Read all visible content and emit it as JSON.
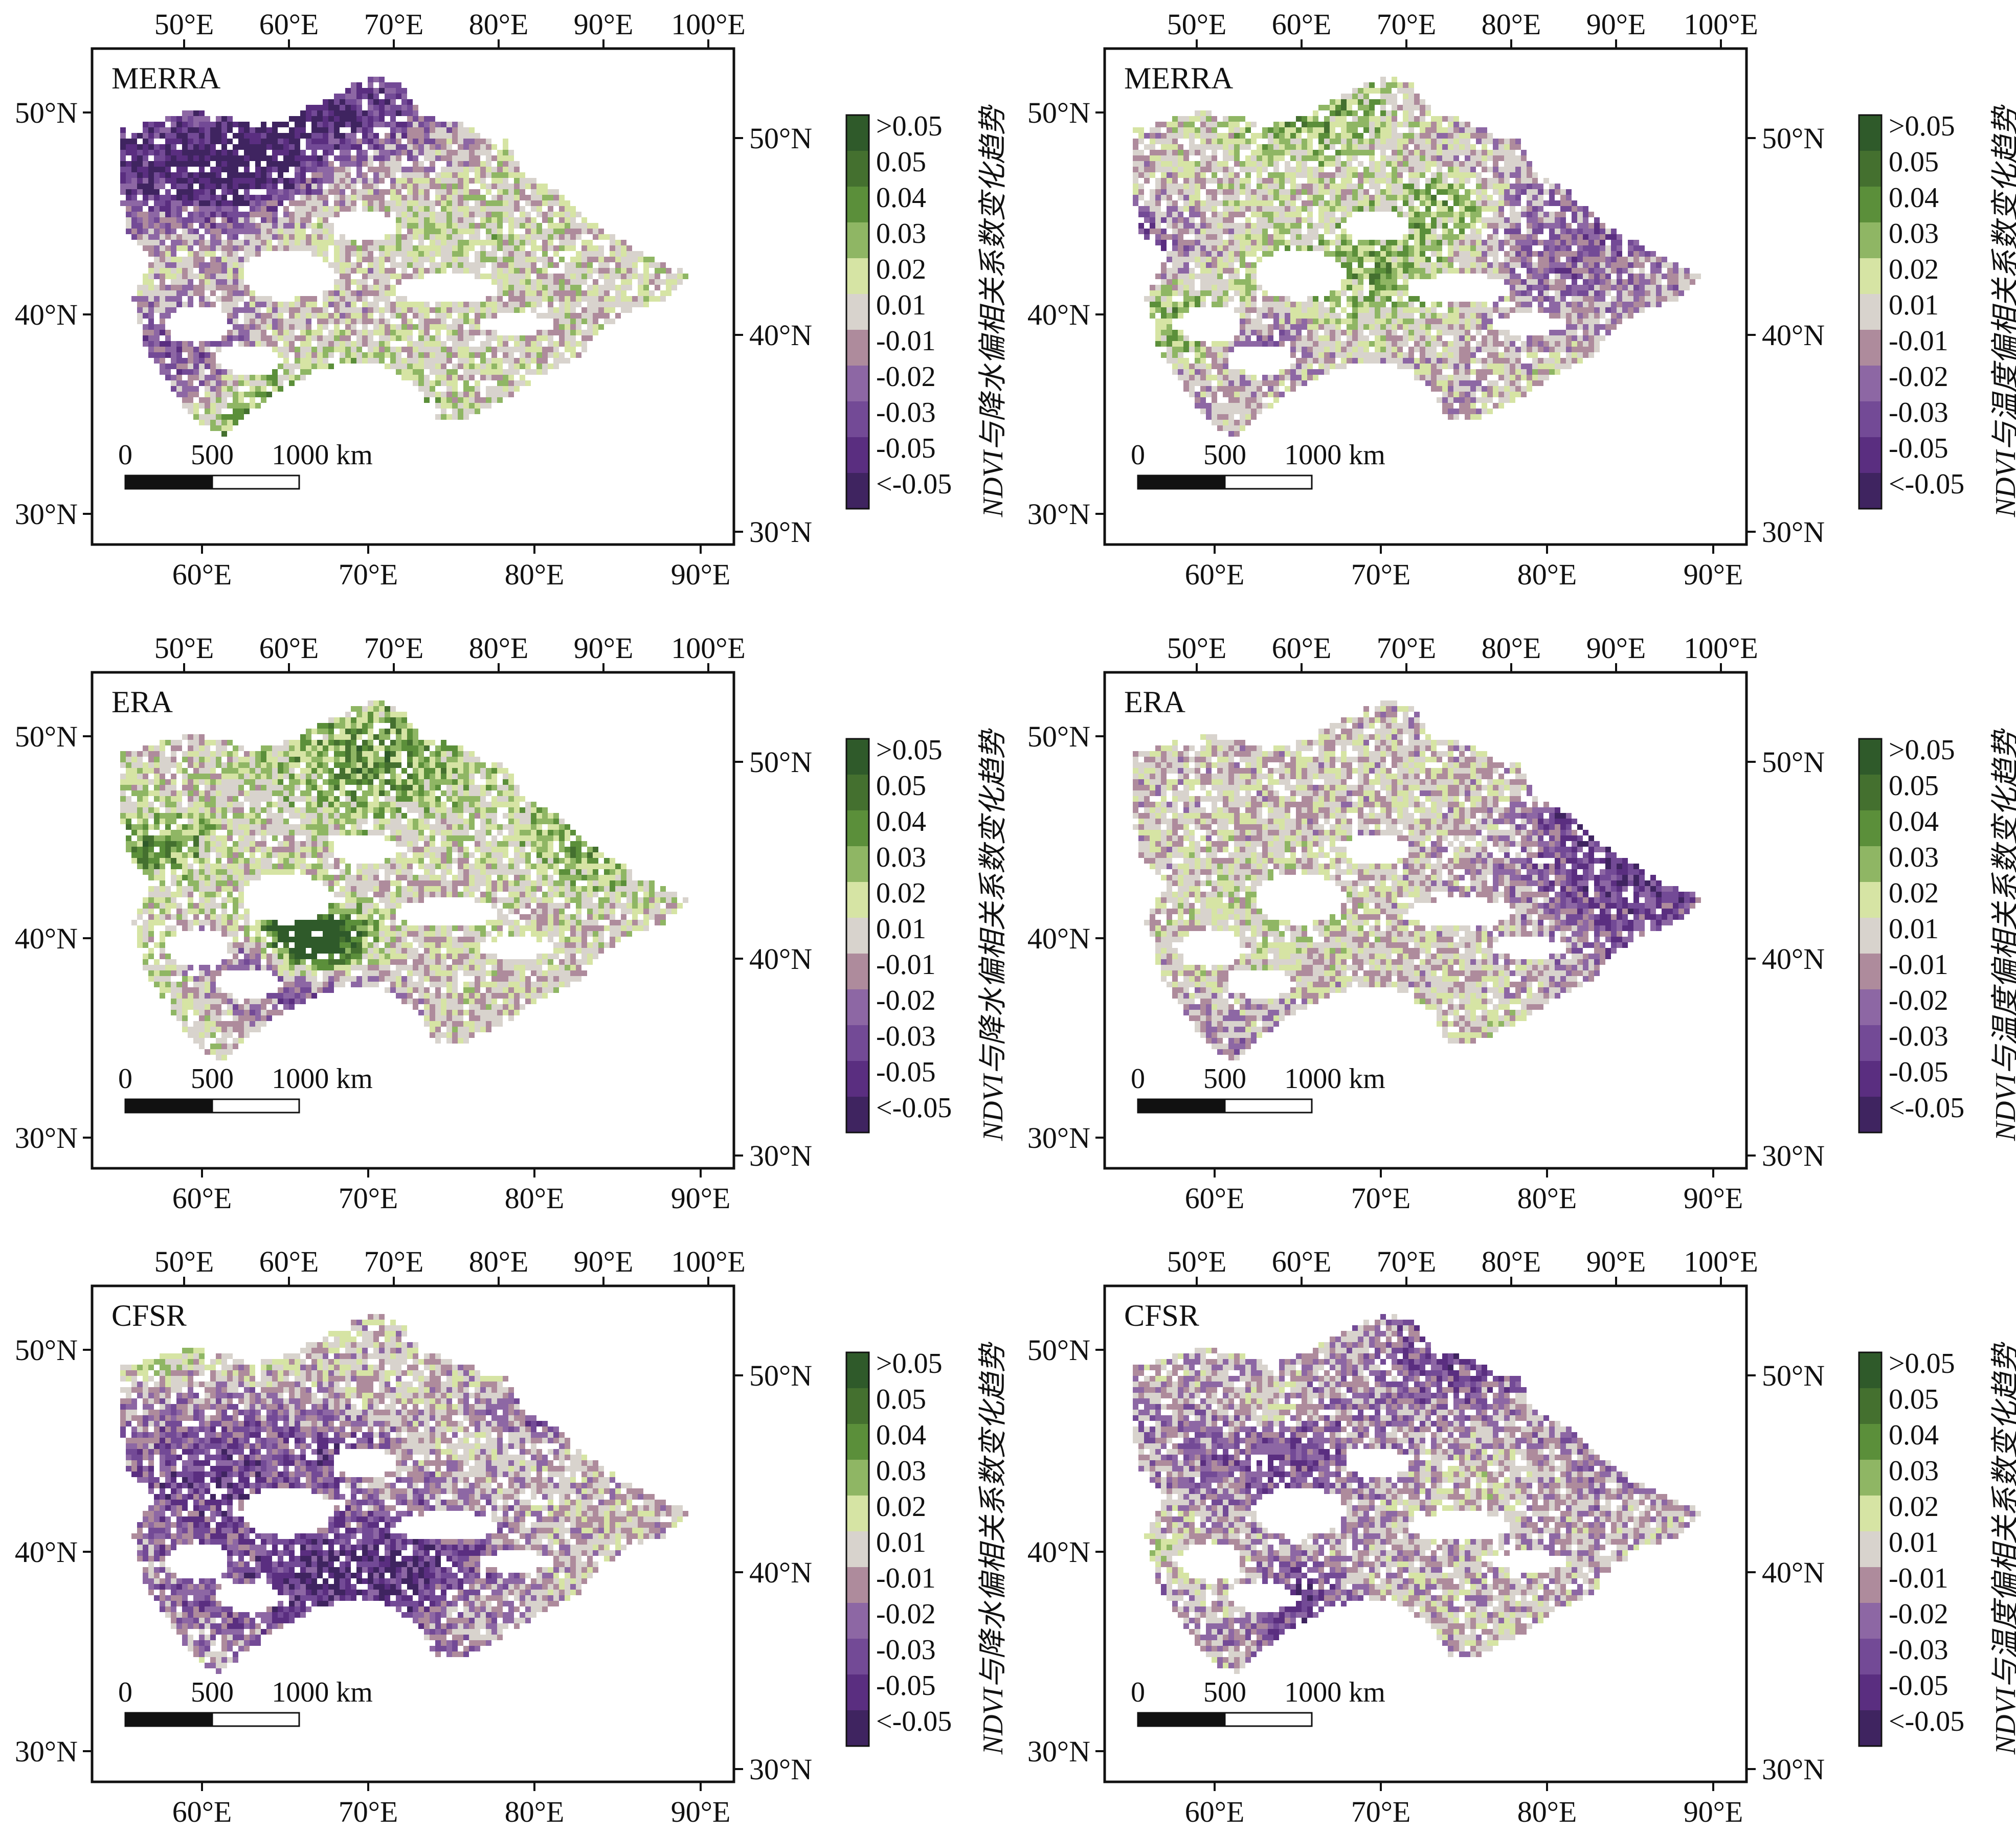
{
  "palette": {
    "classes": [
      ">0.05",
      "0.05",
      "0.04",
      "0.03",
      "0.02",
      "0.01",
      "-0.01",
      "-0.02",
      "-0.03",
      "-0.05",
      "<-0.05"
    ],
    "colors": [
      "#2f5a2a",
      "#44702f",
      "#5b8f3a",
      "#8fb664",
      "#d6e4a4",
      "#d8d3cd",
      "#ae8b9c",
      "#8d67a4",
      "#734a96",
      "#5a2e80",
      "#3f2460"
    ]
  },
  "axes": {
    "top_lon_ticks": [
      "50°E",
      "60°E",
      "70°E",
      "80°E",
      "90°E",
      "100°E"
    ],
    "bottom_lon_ticks": [
      "60°E",
      "70°E",
      "80°E",
      "90°E"
    ],
    "left_lat_ticks": [
      "50°N",
      "40°N",
      "30°N"
    ],
    "right_lat_ticks": [
      "50°N",
      "40°N",
      "30°N"
    ]
  },
  "scale_bar": {
    "labels": [
      "0",
      "500",
      "1000 km"
    ]
  },
  "colorbar_titles": {
    "precip": "NDVI与降水偏相关系数变化趋势",
    "temp": "NDVI与温度偏相关系数变化趋势"
  },
  "panels": [
    {
      "dataset": "MERRA",
      "variable": "precip",
      "seed": 11,
      "green_bias": 0.15
    },
    {
      "dataset": "MERRA",
      "variable": "temp",
      "seed": 23,
      "green_bias": -0.35
    },
    {
      "dataset": "ERA",
      "variable": "precip",
      "seed": 37,
      "green_bias": 0.1
    },
    {
      "dataset": "ERA",
      "variable": "temp",
      "seed": 41,
      "green_bias": -0.05
    },
    {
      "dataset": "CFSR",
      "variable": "precip",
      "seed": 53,
      "green_bias": -0.1
    },
    {
      "dataset": "CFSR",
      "variable": "temp",
      "seed": 67,
      "green_bias": -0.2
    }
  ]
}
